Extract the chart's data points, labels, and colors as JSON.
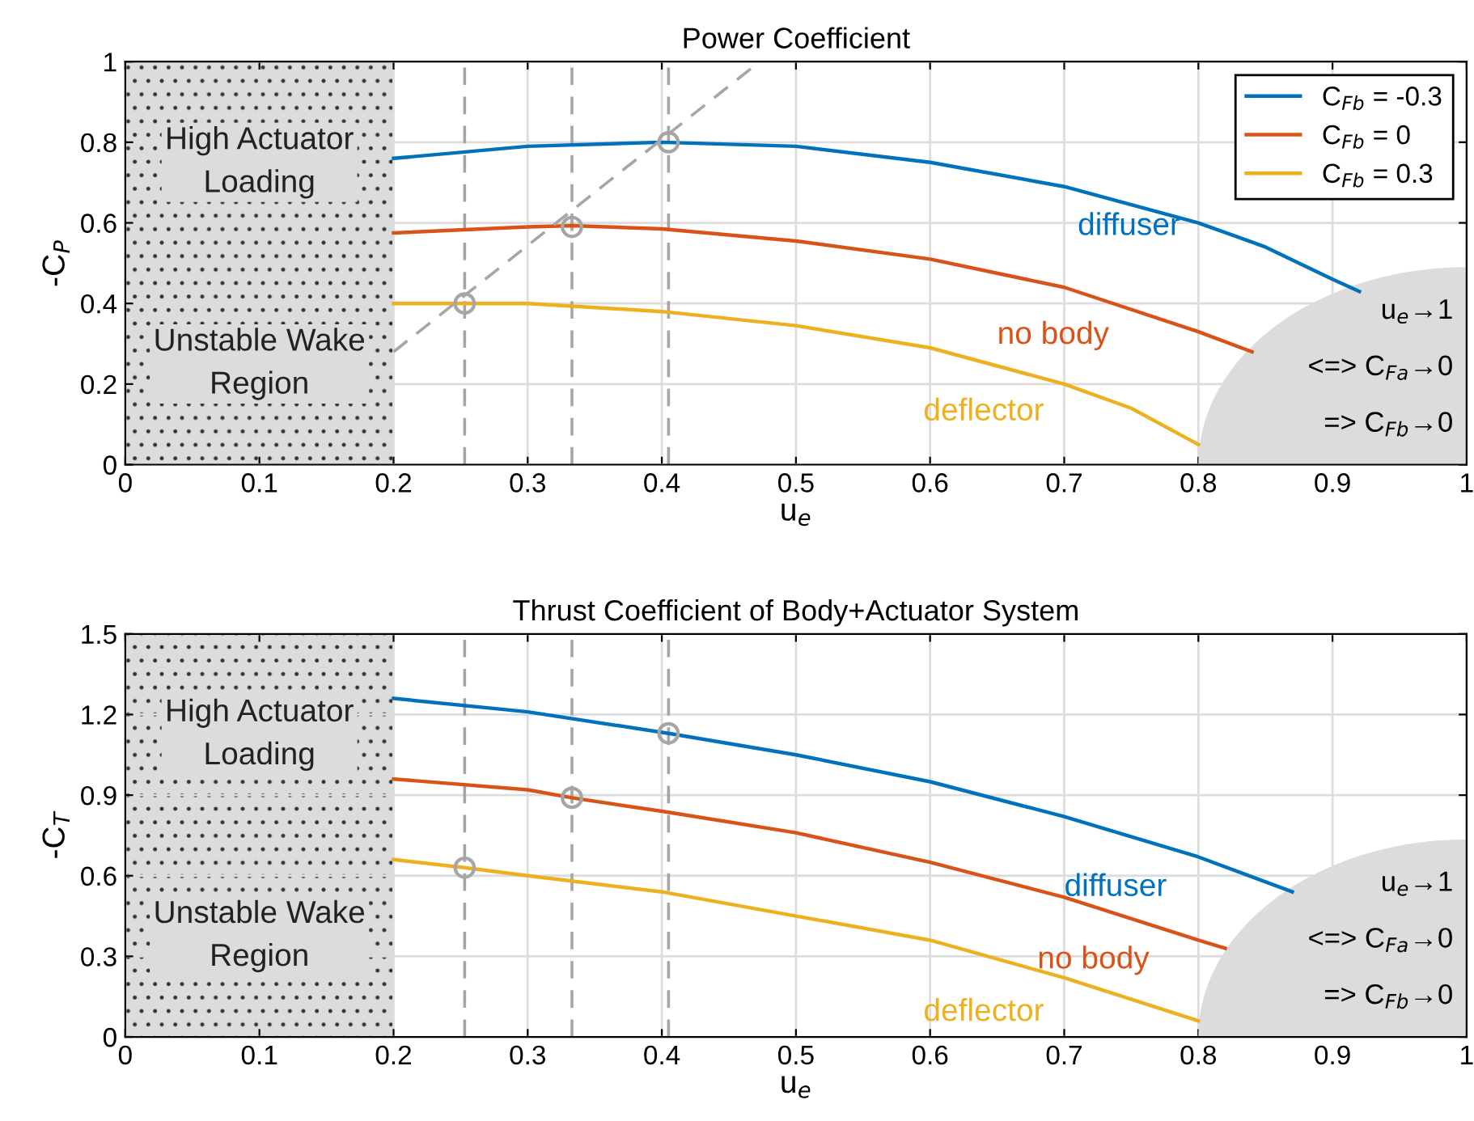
{
  "chart_data": [
    {
      "type": "line",
      "title": "Power Coefficient",
      "xlabel": "u$_{e}$",
      "ylabel": "-C$_{P}$",
      "xlim": [
        0,
        1
      ],
      "xticks": [
        0,
        0.1,
        0.2,
        0.3,
        0.4,
        0.5,
        0.6,
        0.7,
        0.8,
        0.9,
        1
      ],
      "ylim": [
        0,
        1
      ],
      "yticks": [
        0,
        0.2,
        0.4,
        0.6,
        0.8,
        1
      ],
      "grid": true,
      "legend": "top right",
      "series": [
        {
          "name": "C$_{Fb}$ = -0.3",
          "color": "#0072bd",
          "x": [
            0.2,
            0.3,
            0.4,
            0.5,
            0.6,
            0.7,
            0.8,
            0.85,
            0.9,
            0.92
          ],
          "values": [
            0.76,
            0.79,
            0.8,
            0.79,
            0.75,
            0.69,
            0.6,
            0.54,
            0.46,
            0.43
          ]
        },
        {
          "name": "C$_{Fb}$ = 0",
          "color": "#d95319",
          "x": [
            0.2,
            0.3,
            0.333,
            0.4,
            0.5,
            0.6,
            0.7,
            0.8,
            0.84
          ],
          "values": [
            0.575,
            0.59,
            0.593,
            0.585,
            0.555,
            0.51,
            0.44,
            0.33,
            0.28
          ]
        },
        {
          "name": "C$_{Fb}$ = 0.3",
          "color": "#edb120",
          "x": [
            0.2,
            0.25,
            0.3,
            0.4,
            0.5,
            0.6,
            0.7,
            0.75,
            0.8
          ],
          "values": [
            0.4,
            0.4,
            0.4,
            0.38,
            0.345,
            0.29,
            0.2,
            0.14,
            0.05
          ]
        },
        {
          "type": "line",
          "line_style": "dashed",
          "color": "#a6a6a6",
          "x": [
            0.2,
            0.473
          ],
          "values": [
            0.28,
            1.0
          ]
        },
        {
          "type": "scatter",
          "marker": "circle",
          "color": "#a6a6a6",
          "x": [
            0.253,
            0.333,
            0.405
          ],
          "values": [
            0.4,
            0.59,
            0.8
          ]
        }
      ],
      "ref_lines": [
        {
          "axis": "x",
          "value": 0.253,
          "label": null,
          "line_style": "dashed",
          "color": "#a6a6a6"
        },
        {
          "axis": "x",
          "value": 0.333,
          "label": null,
          "line_style": "dashed",
          "color": "#a6a6a6"
        },
        {
          "axis": "x",
          "value": 0.405,
          "label": null,
          "line_style": "dashed",
          "color": "#a6a6a6"
        }
      ],
      "bands": [
        {
          "axis": "x",
          "from": 0,
          "to": 0.2,
          "label": null,
          "color": "#dcdcdc"
        }
      ],
      "annotations": [
        "diffuser",
        "no body",
        "deflector",
        "High Actuator\nLoading",
        "Unstable Wake\nRegion",
        "u$_{e}$→1",
        "<=> C$_{Fa}$→0",
        "=> C$_{Fb}$→0"
      ]
    },
    {
      "type": "line",
      "title": "Thrust Coefficient of Body+Actuator System",
      "xlabel": "u$_{e}$",
      "ylabel": "-C$_{T}$",
      "xlim": [
        0,
        1
      ],
      "xticks": [
        0,
        0.1,
        0.2,
        0.3,
        0.4,
        0.5,
        0.6,
        0.7,
        0.8,
        0.9,
        1
      ],
      "ylim": [
        0,
        1.5
      ],
      "yticks": [
        0,
        0.3,
        0.6,
        0.9,
        1.2,
        1.5
      ],
      "grid": true,
      "series": [
        {
          "color": "#0072bd",
          "x": [
            0.2,
            0.3,
            0.405,
            0.5,
            0.6,
            0.7,
            0.8,
            0.87
          ],
          "values": [
            1.26,
            1.21,
            1.13,
            1.05,
            0.95,
            0.82,
            0.67,
            0.54
          ]
        },
        {
          "color": "#d95319",
          "x": [
            0.2,
            0.3,
            0.333,
            0.4,
            0.5,
            0.6,
            0.7,
            0.8,
            0.82
          ],
          "values": [
            0.96,
            0.92,
            0.89,
            0.84,
            0.76,
            0.65,
            0.52,
            0.36,
            0.33
          ]
        },
        {
          "color": "#edb120",
          "x": [
            0.2,
            0.253,
            0.3,
            0.4,
            0.5,
            0.6,
            0.7,
            0.8
          ],
          "values": [
            0.66,
            0.63,
            0.6,
            0.54,
            0.45,
            0.36,
            0.22,
            0.06
          ]
        },
        {
          "type": "scatter",
          "marker": "circle",
          "color": "#a6a6a6",
          "x": [
            0.253,
            0.333,
            0.405
          ],
          "values": [
            0.63,
            0.89,
            1.13
          ]
        }
      ],
      "ref_lines": [
        {
          "axis": "x",
          "value": 0.253,
          "label": null,
          "line_style": "dashed",
          "color": "#a6a6a6"
        },
        {
          "axis": "x",
          "value": 0.333,
          "label": null,
          "line_style": "dashed",
          "color": "#a6a6a6"
        },
        {
          "axis": "x",
          "value": 0.405,
          "label": null,
          "line_style": "dashed",
          "color": "#a6a6a6"
        }
      ],
      "bands": [
        {
          "axis": "x",
          "from": 0,
          "to": 0.2,
          "label": null,
          "color": "#dcdcdc"
        }
      ],
      "annotations": [
        "diffuser",
        "no body",
        "deflector",
        "High Actuator\nLoading",
        "Unstable Wake\nRegion",
        "u$_{e}$→1",
        "<=> C$_{Fa}$→0",
        "=> C$_{Fb}$→0"
      ]
    }
  ]
}
